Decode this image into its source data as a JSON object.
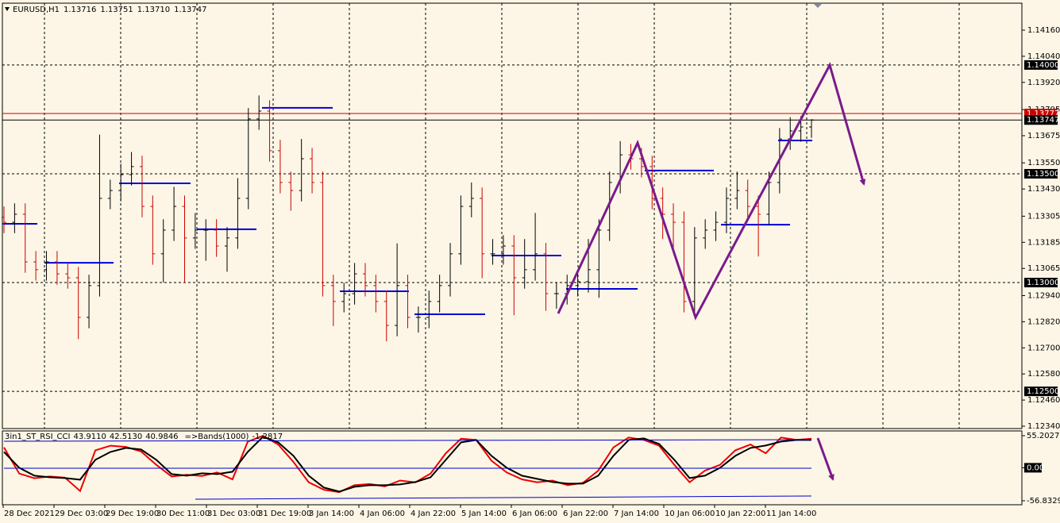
{
  "chart_data": [
    {
      "type": "ohlc",
      "title": "EURUSD,H1",
      "header_values": [
        {
          "value": 1.13716,
          "label": "1.13716"
        },
        {
          "value": 1.13751,
          "label": "1.13751"
        },
        {
          "value": 1.1371,
          "label": "1.13710"
        },
        {
          "value": 1.13747,
          "label": "1.13747"
        }
      ],
      "categories": [
        "28 Dec 2021",
        "29 Dec 03:00",
        "29 Dec 19:00",
        "30 Dec 11:00",
        "31 Dec 03:00",
        "31 Dec 19:00",
        "3 Jan 14:00",
        "4 Jan 06:00",
        "4 Jan 22:00",
        "5 Jan 14:00",
        "6 Jan 06:00",
        "6 Jan 22:00",
        "7 Jan 14:00",
        "10 Jan 06:00",
        "10 Jan 22:00",
        "11 Jan 14:00"
      ],
      "bars": [
        [
          1.133,
          1.1335,
          1.13227,
          1.13277
        ],
        [
          1.13277,
          1.13364,
          1.13227,
          1.13314
        ],
        [
          1.13314,
          1.13364,
          1.13045,
          1.13095
        ],
        [
          1.13095,
          1.13145,
          1.13009,
          1.13059
        ],
        [
          1.13059,
          1.13145,
          1.13009,
          1.13095
        ],
        [
          1.13095,
          1.13145,
          1.1299,
          1.1304
        ],
        [
          1.1304,
          1.1309,
          1.12972,
          1.13022
        ],
        [
          1.13022,
          1.13072,
          1.1274,
          1.1284
        ],
        [
          1.1284,
          1.13036,
          1.1279,
          1.12986
        ],
        [
          1.12986,
          1.1368,
          1.12936,
          1.13387
        ],
        [
          1.13387,
          1.13473,
          1.13337,
          1.13423
        ],
        [
          1.13423,
          1.13546,
          1.13373,
          1.13496
        ],
        [
          1.13496,
          1.136,
          1.13446,
          1.13533
        ],
        [
          1.13533,
          1.13583,
          1.133,
          1.1335
        ],
        [
          1.1335,
          1.134,
          1.13082,
          1.13132
        ],
        [
          1.13132,
          1.13291,
          1.13,
          1.13241
        ],
        [
          1.13241,
          1.1344,
          1.13191,
          1.1335
        ],
        [
          1.1335,
          1.134,
          1.13,
          1.13205
        ],
        [
          1.13205,
          1.1332,
          1.13155,
          1.13241
        ],
        [
          1.13241,
          1.13291,
          1.131,
          1.13241
        ],
        [
          1.13241,
          1.13291,
          1.13118,
          1.13168
        ],
        [
          1.13168,
          1.13255,
          1.1305,
          1.13205
        ],
        [
          1.13205,
          1.1348,
          1.13155,
          1.13387
        ],
        [
          1.13387,
          1.13802,
          1.13337,
          1.13752
        ],
        [
          1.13752,
          1.1386,
          1.13702,
          1.13788
        ],
        [
          1.13788,
          1.13838,
          1.13556,
          1.13606
        ],
        [
          1.13606,
          1.13656,
          1.1341,
          1.1346
        ],
        [
          1.1346,
          1.1351,
          1.1333,
          1.13423
        ],
        [
          1.13423,
          1.1366,
          1.13373,
          1.13569
        ],
        [
          1.13569,
          1.13619,
          1.1341,
          1.1346
        ],
        [
          1.1346,
          1.1351,
          1.12936,
          1.12986
        ],
        [
          1.12986,
          1.13036,
          1.128,
          1.12913
        ],
        [
          1.12913,
          1.12999,
          1.12863,
          1.12949
        ],
        [
          1.12949,
          1.1309,
          1.12899,
          1.1304
        ],
        [
          1.1304,
          1.1309,
          1.12936,
          1.12986
        ],
        [
          1.12986,
          1.13036,
          1.12863,
          1.12913
        ],
        [
          1.12913,
          1.12963,
          1.1273,
          1.12803
        ],
        [
          1.12803,
          1.1318,
          1.12753,
          1.12986
        ],
        [
          1.12986,
          1.13036,
          1.1279,
          1.1284
        ],
        [
          1.1284,
          1.1289,
          1.1277,
          1.1284
        ],
        [
          1.1284,
          1.12963,
          1.1279,
          1.12913
        ],
        [
          1.12913,
          1.13036,
          1.12863,
          1.12986
        ],
        [
          1.12986,
          1.13182,
          1.12936,
          1.13132
        ],
        [
          1.13132,
          1.134,
          1.13082,
          1.1335
        ],
        [
          1.1335,
          1.1346,
          1.133,
          1.13387
        ],
        [
          1.13387,
          1.13437,
          1.1302,
          1.13132
        ],
        [
          1.13132,
          1.132,
          1.13082,
          1.13132
        ],
        [
          1.13132,
          1.13218,
          1.13082,
          1.13168
        ],
        [
          1.13168,
          1.13218,
          1.1285,
          1.13022
        ],
        [
          1.13022,
          1.132,
          1.12972,
          1.13059
        ],
        [
          1.13059,
          1.1332,
          1.13009,
          1.13132
        ],
        [
          1.13132,
          1.13182,
          1.1287,
          1.12949
        ],
        [
          1.12949,
          1.12999,
          1.1288,
          1.12949
        ],
        [
          1.12949,
          1.13036,
          1.12899,
          1.12986
        ],
        [
          1.12986,
          1.13054,
          1.12936,
          1.13004
        ],
        [
          1.13004,
          1.132,
          1.12954,
          1.13059
        ],
        [
          1.13059,
          1.13291,
          1.1293,
          1.13241
        ],
        [
          1.13241,
          1.1351,
          1.13191,
          1.1346
        ],
        [
          1.1346,
          1.1365,
          1.1341,
          1.13587
        ],
        [
          1.13587,
          1.13637,
          1.13519,
          1.13569
        ],
        [
          1.13569,
          1.13619,
          1.13483,
          1.13533
        ],
        [
          1.13533,
          1.13583,
          1.13337,
          1.13387
        ],
        [
          1.13387,
          1.13437,
          1.132,
          1.13314
        ],
        [
          1.13314,
          1.13364,
          1.1315,
          1.13277
        ],
        [
          1.13277,
          1.13327,
          1.12863,
          1.12913
        ],
        [
          1.12913,
          1.13255,
          1.12863,
          1.13205
        ],
        [
          1.13205,
          1.13291,
          1.13155,
          1.13241
        ],
        [
          1.13241,
          1.13327,
          1.13191,
          1.13277
        ],
        [
          1.13277,
          1.13437,
          1.13227,
          1.13387
        ],
        [
          1.13387,
          1.1351,
          1.13337,
          1.13423
        ],
        [
          1.13423,
          1.13473,
          1.133,
          1.1335
        ],
        [
          1.1335,
          1.134,
          1.1312,
          1.13314
        ],
        [
          1.13314,
          1.1351,
          1.13264,
          1.1346
        ],
        [
          1.1346,
          1.1371,
          1.1341,
          1.1366
        ],
        [
          1.1366,
          1.1376,
          1.1361,
          1.13697
        ],
        [
          1.13697,
          1.13765,
          1.13647,
          1.13715
        ],
        [
          1.13715,
          1.13751,
          1.13665,
          1.13747
        ]
      ],
      "up_color": "#000000",
      "down_color": "#cc0000",
      "ylim": [
        1.12329,
        1.14284
      ],
      "yticks": [
        {
          "value": 1.1416,
          "label": "1.14160"
        },
        {
          "value": 1.1404,
          "label": "1.14040"
        },
        {
          "value": 1.1392,
          "label": "1.13920"
        },
        {
          "value": 1.13795,
          "label": "1.13795"
        },
        {
          "value": 1.13675,
          "label": "1.13675"
        },
        {
          "value": 1.1355,
          "label": "1.13550"
        },
        {
          "value": 1.1343,
          "label": "1.13430"
        },
        {
          "value": 1.13305,
          "label": "1.13305"
        },
        {
          "value": 1.13185,
          "label": "1.13185"
        },
        {
          "value": 1.13065,
          "label": "1.13065"
        },
        {
          "value": 1.1294,
          "label": "1.12940"
        },
        {
          "value": 1.1282,
          "label": "1.12820"
        },
        {
          "value": 1.127,
          "label": "1.12700"
        },
        {
          "value": 1.1258,
          "label": "1.12580"
        },
        {
          "value": 1.1246,
          "label": "1.12460"
        },
        {
          "value": 1.1234,
          "label": "1.12340"
        }
      ],
      "levels": [
        {
          "value": 1.14,
          "label": "1.14000"
        },
        {
          "value": 1.135,
          "label": "1.13500"
        },
        {
          "value": 1.13,
          "label": "1.13000"
        },
        {
          "value": 1.125,
          "label": "1.12500"
        }
      ],
      "price_lines": [
        {
          "value": 1.13777,
          "label": "1.13777",
          "color": "#cc0000"
        },
        {
          "value": 1.13747,
          "label": "1.13747",
          "color": "#000000"
        }
      ],
      "pivot_lines": [
        1.1327,
        1.13091,
        1.13456,
        1.13245,
        1.13803,
        1.1296,
        1.12854,
        1.13124,
        1.12971,
        1.13515,
        1.13266,
        1.13653
      ],
      "pivot_color": "#0000dd",
      "grid": true
    },
    {
      "type": "oscillator",
      "title": "3in1_ST_RSI_CCI",
      "header_values": [
        {
          "value": 43.911,
          "label": "43.9110"
        },
        {
          "value": 42.513,
          "label": "42.5130"
        },
        {
          "value": 40.9846,
          "label": "40.9846"
        }
      ],
      "bands_label": "=>Bands(1000)",
      "bands_value": -1.2817,
      "series": [
        {
          "color": "#ee0000",
          "values": [
            35,
            -10,
            -18,
            -15,
            -17,
            -40,
            30,
            38,
            36,
            28,
            5,
            -15,
            -12,
            -14,
            -8,
            -20,
            45,
            55,
            40,
            10,
            -25,
            -38,
            -42,
            -30,
            -28,
            -32,
            -22,
            -25,
            -10,
            25,
            50,
            48,
            12,
            -8,
            -20,
            -25,
            -22,
            -30,
            -26,
            -5,
            35,
            52,
            48,
            38,
            5,
            -25,
            -5,
            5,
            30,
            40,
            25,
            52,
            48,
            50
          ]
        },
        {
          "color": "#000000",
          "values": [
            27.3,
            0,
            -13.7,
            -16.4,
            -17.8,
            -20.5,
            13.7,
            27.3,
            34.2,
            31.4,
            13.7,
            -10.9,
            -13.7,
            -9.6,
            -10.9,
            -6.8,
            27.3,
            53.3,
            43.7,
            20.5,
            -13.7,
            -34.2,
            -41,
            -32.8,
            -30.1,
            -30.1,
            -28.7,
            -24.6,
            -16.4,
            13.7,
            43.7,
            47.8,
            20.5,
            0,
            -13.7,
            -19.1,
            -24.6,
            -27.3,
            -27.3,
            -13.7,
            20.5,
            47.8,
            50.5,
            41,
            13.7,
            -17.8,
            -13.7,
            0,
            20.5,
            34.2,
            38.2,
            45.1,
            47.8,
            47.8
          ]
        }
      ],
      "ylim": [
        -56.8329,
        55.2027
      ],
      "yticks": [
        {
          "value": 55.2027,
          "label": "55.2027"
        },
        {
          "value": 0,
          "label": "0.00"
        },
        {
          "value": -56.8329,
          "label": "-56.8329"
        }
      ]
    }
  ]
}
